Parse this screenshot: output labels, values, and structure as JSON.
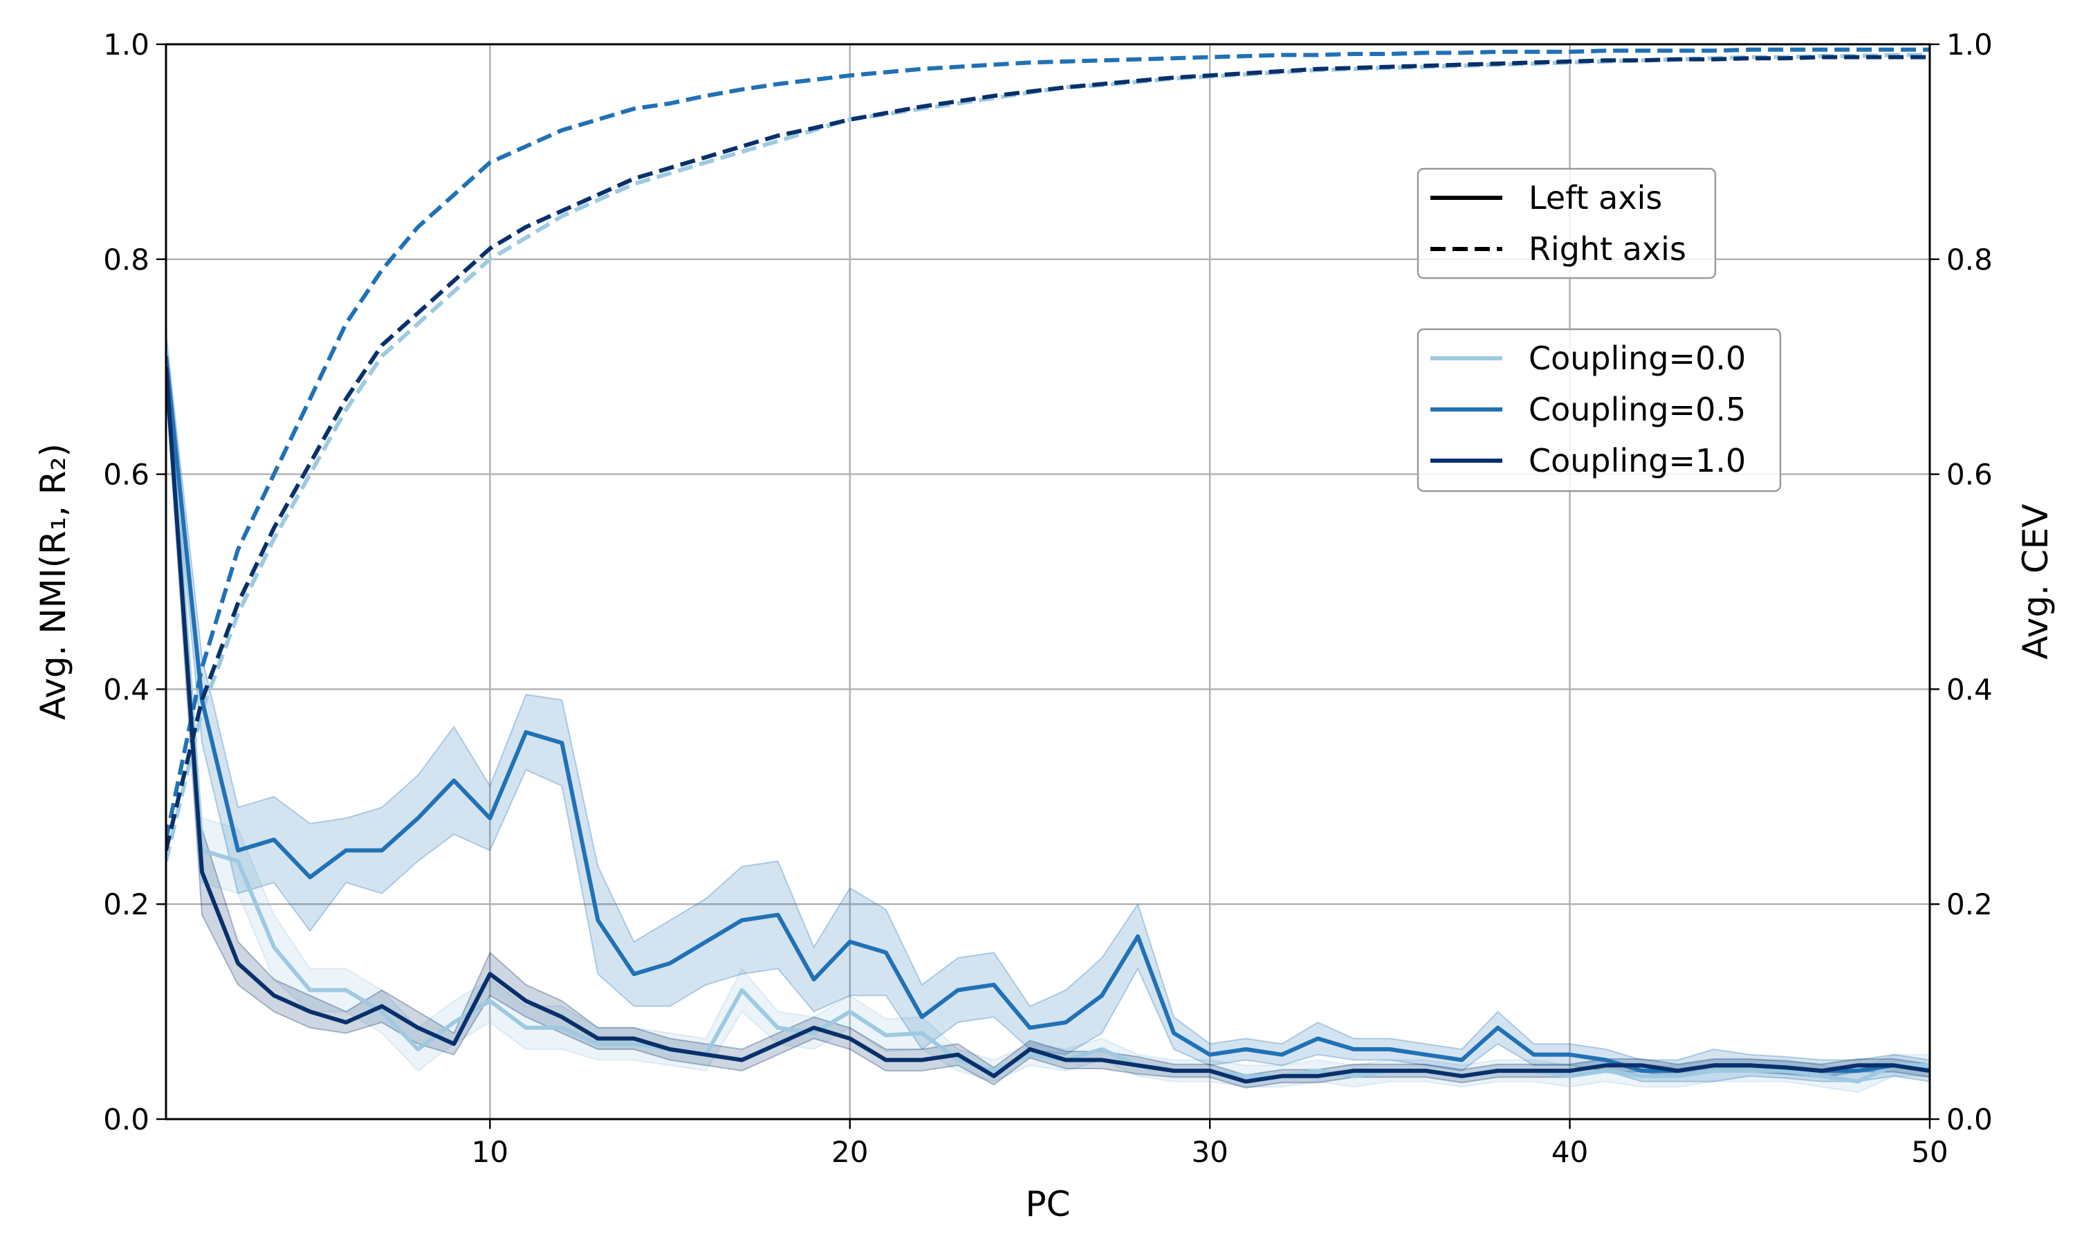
{
  "chart_data": {
    "type": "line",
    "xlabel": "PC",
    "ylabel_left": "Avg. NMI(R₁, R₂)",
    "ylabel_right": "Avg. CEV",
    "xlim": [
      1,
      50
    ],
    "ylim_left": [
      0.0,
      1.0
    ],
    "ylim_right": [
      0.0,
      1.0
    ],
    "x_ticks": [
      10,
      20,
      30,
      40,
      50
    ],
    "y_ticks": [
      0.0,
      0.2,
      0.4,
      0.6,
      0.8,
      1.0
    ],
    "grid": true,
    "x": [
      1,
      2,
      3,
      4,
      5,
      6,
      7,
      8,
      9,
      10,
      11,
      12,
      13,
      14,
      15,
      16,
      17,
      18,
      19,
      20,
      21,
      22,
      23,
      24,
      25,
      26,
      27,
      28,
      29,
      30,
      31,
      32,
      33,
      34,
      35,
      36,
      37,
      38,
      39,
      40,
      41,
      42,
      43,
      44,
      45,
      46,
      47,
      48,
      49,
      50
    ],
    "legend_style": {
      "position": "upper-right",
      "entries": [
        {
          "label": "Left axis",
          "dash": "solid"
        },
        {
          "label": "Right axis",
          "dash": "dashed"
        }
      ]
    },
    "series": [
      {
        "name": "Coupling=0.0",
        "color": "#9ecae1",
        "nmi": [
          0.72,
          0.25,
          0.24,
          0.16,
          0.12,
          0.12,
          0.1,
          0.065,
          0.09,
          0.11,
          0.085,
          0.085,
          0.07,
          0.07,
          0.065,
          0.06,
          0.12,
          0.085,
          0.08,
          0.1,
          0.078,
          0.08,
          0.055,
          0.045,
          0.06,
          0.055,
          0.065,
          0.05,
          0.045,
          0.045,
          0.04,
          0.04,
          0.045,
          0.04,
          0.045,
          0.045,
          0.04,
          0.045,
          0.045,
          0.04,
          0.045,
          0.04,
          0.04,
          0.045,
          0.045,
          0.045,
          0.04,
          0.035,
          0.05,
          0.05
        ],
        "nmi_ci": [
          0.02,
          0.03,
          0.03,
          0.03,
          0.02,
          0.02,
          0.02,
          0.02,
          0.02,
          0.02,
          0.02,
          0.02,
          0.015,
          0.015,
          0.015,
          0.015,
          0.02,
          0.015,
          0.015,
          0.015,
          0.015,
          0.015,
          0.01,
          0.01,
          0.01,
          0.01,
          0.01,
          0.01,
          0.01,
          0.01,
          0.01,
          0.01,
          0.01,
          0.01,
          0.01,
          0.01,
          0.01,
          0.01,
          0.01,
          0.01,
          0.01,
          0.01,
          0.01,
          0.01,
          0.01,
          0.01,
          0.01,
          0.01,
          0.01,
          0.01
        ],
        "cev": [
          0.24,
          0.38,
          0.47,
          0.54,
          0.6,
          0.66,
          0.71,
          0.74,
          0.77,
          0.8,
          0.82,
          0.84,
          0.855,
          0.87,
          0.88,
          0.89,
          0.9,
          0.91,
          0.92,
          0.93,
          0.935,
          0.94,
          0.945,
          0.95,
          0.955,
          0.96,
          0.962,
          0.965,
          0.968,
          0.97,
          0.972,
          0.974,
          0.976,
          0.977,
          0.978,
          0.979,
          0.98,
          0.981,
          0.982,
          0.983,
          0.984,
          0.985,
          0.986,
          0.987,
          0.988,
          0.988,
          0.989,
          0.989,
          0.99,
          0.99
        ]
      },
      {
        "name": "Coupling=0.5",
        "color": "#2171b5",
        "nmi": [
          0.71,
          0.39,
          0.25,
          0.26,
          0.225,
          0.25,
          0.25,
          0.28,
          0.315,
          0.28,
          0.36,
          0.35,
          0.185,
          0.135,
          0.145,
          0.165,
          0.185,
          0.19,
          0.13,
          0.165,
          0.155,
          0.095,
          0.12,
          0.125,
          0.085,
          0.09,
          0.115,
          0.17,
          0.08,
          0.06,
          0.065,
          0.06,
          0.075,
          0.065,
          0.065,
          0.06,
          0.055,
          0.085,
          0.06,
          0.06,
          0.055,
          0.045,
          0.045,
          0.05,
          0.05,
          0.048,
          0.045,
          0.045,
          0.05,
          0.045
        ],
        "nmi_ci": [
          0.02,
          0.04,
          0.04,
          0.04,
          0.05,
          0.03,
          0.04,
          0.04,
          0.05,
          0.03,
          0.035,
          0.04,
          0.05,
          0.03,
          0.04,
          0.04,
          0.05,
          0.05,
          0.03,
          0.05,
          0.04,
          0.03,
          0.03,
          0.03,
          0.02,
          0.03,
          0.035,
          0.03,
          0.015,
          0.01,
          0.01,
          0.01,
          0.015,
          0.01,
          0.01,
          0.01,
          0.01,
          0.015,
          0.01,
          0.01,
          0.01,
          0.01,
          0.01,
          0.015,
          0.01,
          0.01,
          0.01,
          0.01,
          0.01,
          0.01
        ],
        "cev": [
          0.26,
          0.42,
          0.53,
          0.6,
          0.67,
          0.74,
          0.79,
          0.83,
          0.86,
          0.89,
          0.905,
          0.92,
          0.93,
          0.94,
          0.945,
          0.952,
          0.958,
          0.963,
          0.967,
          0.971,
          0.974,
          0.977,
          0.979,
          0.981,
          0.983,
          0.984,
          0.985,
          0.986,
          0.987,
          0.988,
          0.989,
          0.99,
          0.99,
          0.991,
          0.991,
          0.992,
          0.992,
          0.993,
          0.993,
          0.993,
          0.994,
          0.994,
          0.994,
          0.994,
          0.995,
          0.995,
          0.995,
          0.995,
          0.995,
          0.995
        ]
      },
      {
        "name": "Coupling=1.0",
        "color": "#08306b",
        "nmi": [
          0.7,
          0.23,
          0.145,
          0.115,
          0.1,
          0.09,
          0.105,
          0.085,
          0.07,
          0.135,
          0.11,
          0.095,
          0.075,
          0.075,
          0.065,
          0.06,
          0.055,
          0.07,
          0.085,
          0.075,
          0.055,
          0.055,
          0.06,
          0.04,
          0.065,
          0.055,
          0.055,
          0.05,
          0.045,
          0.045,
          0.035,
          0.04,
          0.04,
          0.045,
          0.045,
          0.045,
          0.04,
          0.045,
          0.045,
          0.045,
          0.05,
          0.05,
          0.045,
          0.05,
          0.05,
          0.048,
          0.045,
          0.05,
          0.05,
          0.045
        ],
        "nmi_ci": [
          0.02,
          0.04,
          0.02,
          0.015,
          0.015,
          0.01,
          0.015,
          0.015,
          0.01,
          0.02,
          0.015,
          0.015,
          0.01,
          0.01,
          0.01,
          0.01,
          0.01,
          0.01,
          0.01,
          0.01,
          0.01,
          0.01,
          0.01,
          0.008,
          0.008,
          0.008,
          0.008,
          0.008,
          0.006,
          0.006,
          0.006,
          0.006,
          0.006,
          0.006,
          0.006,
          0.006,
          0.006,
          0.006,
          0.006,
          0.006,
          0.006,
          0.006,
          0.006,
          0.006,
          0.006,
          0.006,
          0.006,
          0.006,
          0.006,
          0.006
        ],
        "cev": [
          0.25,
          0.39,
          0.48,
          0.55,
          0.61,
          0.67,
          0.72,
          0.75,
          0.78,
          0.81,
          0.83,
          0.845,
          0.86,
          0.875,
          0.885,
          0.895,
          0.905,
          0.915,
          0.922,
          0.93,
          0.936,
          0.942,
          0.947,
          0.952,
          0.956,
          0.96,
          0.963,
          0.966,
          0.969,
          0.971,
          0.973,
          0.975,
          0.977,
          0.978,
          0.979,
          0.98,
          0.981,
          0.982,
          0.983,
          0.984,
          0.985,
          0.985,
          0.986,
          0.986,
          0.987,
          0.987,
          0.988,
          0.988,
          0.988,
          0.988
        ]
      }
    ]
  }
}
